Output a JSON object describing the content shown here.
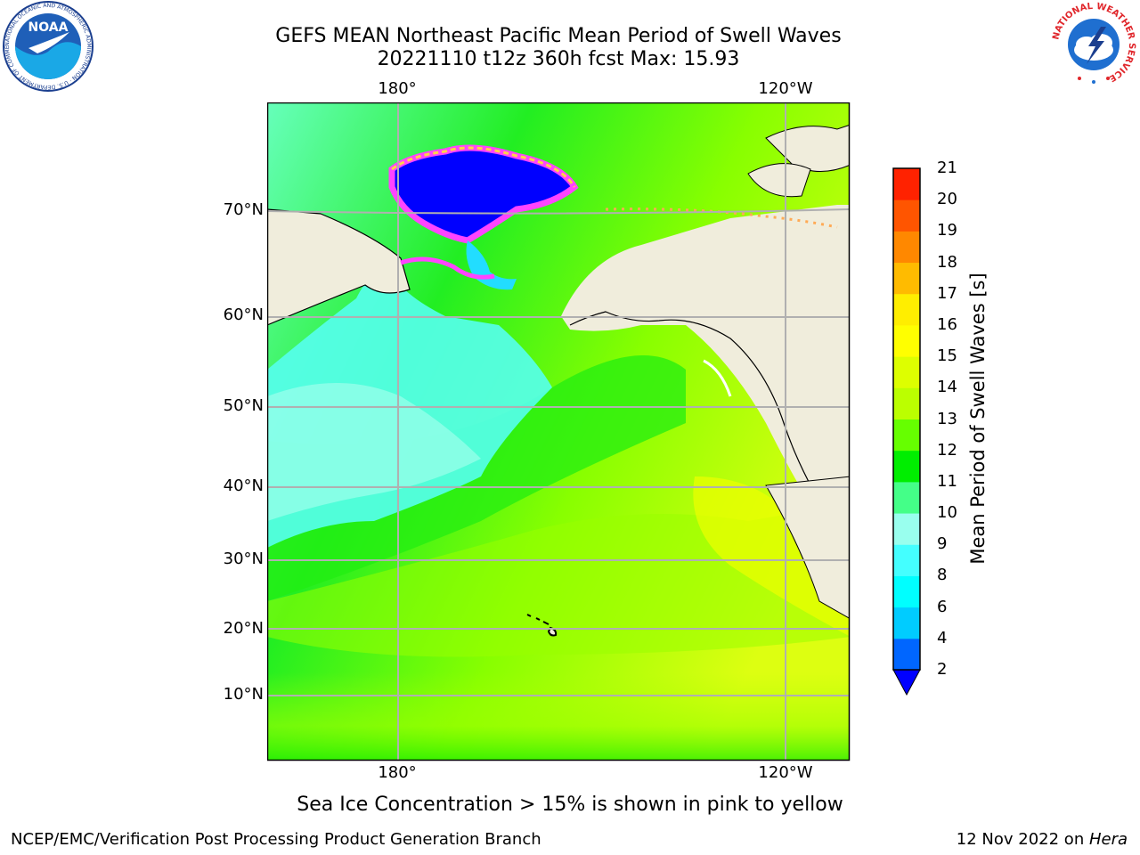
{
  "title": {
    "line1": "GEFS MEAN Northeast Pacific Mean Period of Swell Waves",
    "line2": "20221110 t12z 360h fcst   Max: 15.93"
  },
  "axes": {
    "lon_labels": [
      "180°",
      "120°W"
    ],
    "lat_labels": [
      "70°N",
      "60°N",
      "50°N",
      "40°N",
      "30°N",
      "20°N",
      "10°N"
    ]
  },
  "colorbar": {
    "label": "Mean Period of Swell Waves [s]",
    "ticks": [
      "2",
      "4",
      "6",
      "8",
      "9",
      "10",
      "11",
      "12",
      "13",
      "14",
      "15",
      "16",
      "17",
      "18",
      "19",
      "20",
      "21"
    ],
    "colors": [
      "#0066ff",
      "#00ccff",
      "#00ffff",
      "#44ffff",
      "#99ffee",
      "#44ff88",
      "#00ee00",
      "#66ff00",
      "#bbff00",
      "#ddff00",
      "#ffff00",
      "#ffee00",
      "#ffbb00",
      "#ff8800",
      "#ff5500",
      "#ff2200"
    ],
    "under_color": "#0000ff"
  },
  "colors": {
    "land": "#f0eddc",
    "grid": "#b0b0b0",
    "ice": "#0000ff",
    "ice_edge": "#ff44ff",
    "ice_yellow": "#ffd24a"
  },
  "note": "Sea Ice Concentration > 15% is shown in pink to yellow",
  "footer": {
    "left": "NCEP/EMC/Verification Post Processing Product Generation Branch",
    "right_prefix": "12 Nov 2022 on ",
    "right_italic": "Hera"
  },
  "logos": {
    "noaa": "NOAA",
    "noaa_ring": "NATIONAL OCEANIC AND ATMOSPHERIC ADMINISTRATION · U.S. DEPARTMENT OF COMMERCE",
    "nws_ring": "NATIONAL WEATHER SERVICE"
  }
}
